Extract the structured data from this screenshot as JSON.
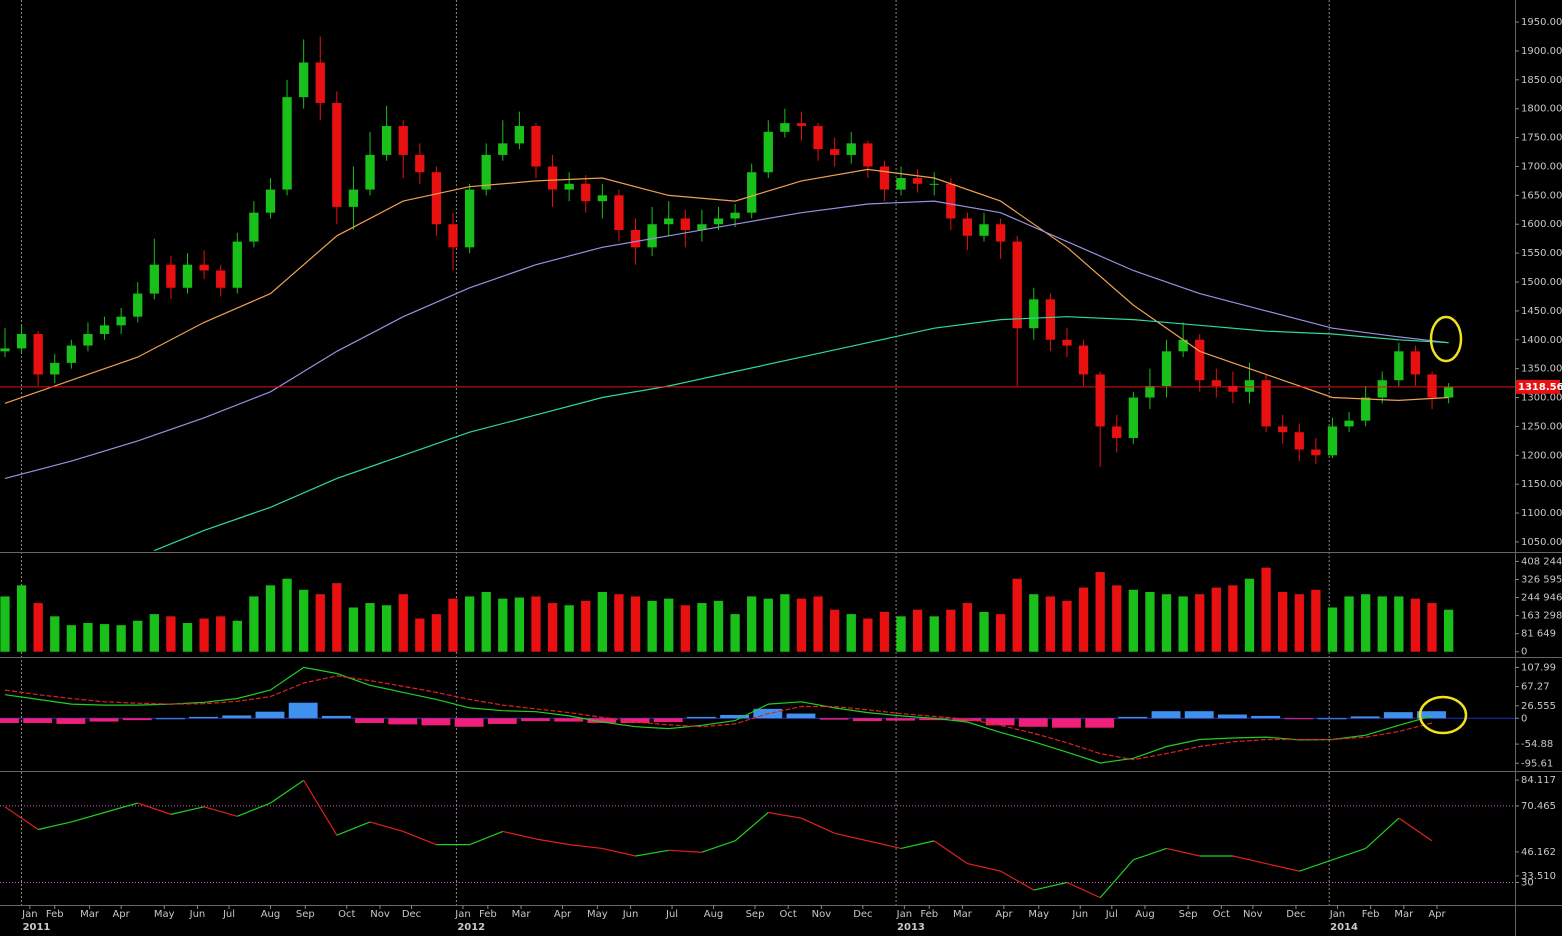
{
  "chart_data": [
    {
      "type": "candlestick",
      "xlim": [
        -0.3,
        91.0
      ],
      "ylim": [
        1032.6,
        1988.2
      ],
      "yticks": [
        {
          "value": 1050,
          "label": "1050.00"
        },
        {
          "value": 1100,
          "label": "1100.00"
        },
        {
          "value": 1150,
          "label": "1150.00"
        },
        {
          "value": 1200,
          "label": "1200.00"
        },
        {
          "value": 1250,
          "label": "1250.00"
        },
        {
          "value": 1300,
          "label": "1300.00"
        },
        {
          "value": 1350,
          "label": "1350.00"
        },
        {
          "value": 1400,
          "label": "1400.00"
        },
        {
          "value": 1450,
          "label": "1450.00"
        },
        {
          "value": 1500,
          "label": "1500.00"
        },
        {
          "value": 1550,
          "label": "1550.00"
        },
        {
          "value": 1600,
          "label": "1600.00"
        },
        {
          "value": 1650,
          "label": "1650.00"
        },
        {
          "value": 1700,
          "label": "1700.00"
        },
        {
          "value": 1750,
          "label": "1750.00"
        },
        {
          "value": 1800,
          "label": "1800.00"
        },
        {
          "value": 1850,
          "label": "1850.00"
        },
        {
          "value": 1900,
          "label": "1900.00"
        },
        {
          "value": 1950,
          "label": "1950.00"
        }
      ],
      "up_color": "#19c019",
      "down_color": "#e81010",
      "open": [
        1380,
        1385,
        1410,
        1340,
        1360,
        1390,
        1410,
        1425,
        1440,
        1480,
        1530,
        1490,
        1530,
        1520,
        1490,
        1570,
        1620,
        1660,
        1820,
        1880,
        1810,
        1630,
        1660,
        1720,
        1770,
        1720,
        1690,
        1600,
        1560,
        1660,
        1720,
        1740,
        1770,
        1700,
        1660,
        1670,
        1640,
        1650,
        1590,
        1560,
        1600,
        1610,
        1590,
        1600,
        1610,
        1620,
        1690,
        1760,
        1775,
        1770,
        1730,
        1720,
        1740,
        1700,
        1660,
        1680,
        1670,
        1670,
        1610,
        1580,
        1600,
        1570,
        1420,
        1470,
        1400,
        1390,
        1340,
        1250,
        1230,
        1300,
        1320,
        1380,
        1400,
        1330,
        1320,
        1310,
        1330,
        1250,
        1240,
        1210,
        1200,
        1250,
        1260,
        1300,
        1330,
        1380,
        1340,
        1300
      ],
      "high": [
        1420,
        1425,
        1415,
        1375,
        1400,
        1430,
        1440,
        1455,
        1500,
        1575,
        1545,
        1550,
        1555,
        1530,
        1585,
        1640,
        1680,
        1850,
        1920,
        1925,
        1830,
        1700,
        1760,
        1805,
        1780,
        1740,
        1700,
        1620,
        1670,
        1740,
        1780,
        1795,
        1775,
        1720,
        1690,
        1685,
        1670,
        1660,
        1610,
        1630,
        1640,
        1625,
        1625,
        1630,
        1635,
        1705,
        1780,
        1800,
        1795,
        1775,
        1750,
        1760,
        1745,
        1710,
        1700,
        1695,
        1690,
        1680,
        1620,
        1620,
        1610,
        1580,
        1490,
        1480,
        1420,
        1400,
        1345,
        1270,
        1310,
        1350,
        1400,
        1430,
        1410,
        1350,
        1345,
        1360,
        1340,
        1270,
        1255,
        1230,
        1265,
        1275,
        1320,
        1345,
        1395,
        1390,
        1345,
        1325
      ],
      "low": [
        1370,
        1375,
        1320,
        1325,
        1350,
        1380,
        1400,
        1410,
        1430,
        1470,
        1470,
        1480,
        1505,
        1475,
        1480,
        1560,
        1610,
        1650,
        1800,
        1780,
        1600,
        1590,
        1650,
        1710,
        1680,
        1670,
        1580,
        1520,
        1550,
        1650,
        1710,
        1730,
        1680,
        1630,
        1640,
        1620,
        1610,
        1570,
        1530,
        1545,
        1580,
        1560,
        1570,
        1590,
        1595,
        1610,
        1680,
        1750,
        1745,
        1710,
        1700,
        1705,
        1680,
        1640,
        1650,
        1655,
        1650,
        1590,
        1555,
        1570,
        1540,
        1320,
        1400,
        1380,
        1370,
        1320,
        1180,
        1205,
        1220,
        1280,
        1300,
        1370,
        1310,
        1300,
        1290,
        1290,
        1240,
        1220,
        1190,
        1185,
        1195,
        1240,
        1250,
        1290,
        1320,
        1320,
        1280,
        1290
      ],
      "close": [
        1385,
        1410,
        1340,
        1360,
        1390,
        1410,
        1425,
        1440,
        1480,
        1530,
        1490,
        1530,
        1520,
        1490,
        1570,
        1620,
        1660,
        1820,
        1880,
        1810,
        1630,
        1660,
        1720,
        1770,
        1720,
        1690,
        1600,
        1560,
        1660,
        1720,
        1740,
        1770,
        1700,
        1660,
        1670,
        1640,
        1650,
        1590,
        1560,
        1600,
        1610,
        1590,
        1600,
        1610,
        1620,
        1690,
        1760,
        1775,
        1770,
        1730,
        1720,
        1740,
        1700,
        1660,
        1680,
        1670,
        1670,
        1610,
        1580,
        1600,
        1570,
        1420,
        1470,
        1400,
        1390,
        1340,
        1250,
        1230,
        1300,
        1320,
        1380,
        1400,
        1330,
        1320,
        1310,
        1330,
        1250,
        1240,
        1210,
        1200,
        1250,
        1260,
        1300,
        1330,
        1380,
        1340,
        1300,
        1318.56
      ],
      "moving_averages": [
        {
          "color": "#f0a050",
          "x": [
            0,
            4,
            8,
            12,
            16,
            20,
            24,
            28,
            32,
            36,
            40,
            44,
            48,
            52,
            56,
            60,
            64,
            68,
            72,
            76,
            80,
            84,
            87
          ],
          "values": [
            1290,
            1330,
            1370,
            1430,
            1480,
            1580,
            1640,
            1665,
            1675,
            1680,
            1650,
            1640,
            1675,
            1695,
            1680,
            1640,
            1560,
            1460,
            1380,
            1340,
            1300,
            1295,
            1300
          ]
        },
        {
          "color": "#9a90e0",
          "x": [
            0,
            4,
            8,
            12,
            16,
            20,
            24,
            28,
            32,
            36,
            40,
            44,
            48,
            52,
            56,
            60,
            64,
            68,
            72,
            76,
            80,
            84,
            87
          ],
          "values": [
            1160,
            1190,
            1225,
            1265,
            1310,
            1380,
            1440,
            1490,
            1530,
            1560,
            1580,
            1600,
            1620,
            1635,
            1640,
            1620,
            1570,
            1520,
            1480,
            1450,
            1420,
            1405,
            1395
          ]
        },
        {
          "color": "#30d8a0",
          "x": [
            9,
            12,
            16,
            20,
            24,
            28,
            32,
            36,
            40,
            44,
            48,
            52,
            56,
            60,
            64,
            68,
            72,
            76,
            80,
            84,
            87
          ],
          "values": [
            1035,
            1070,
            1110,
            1160,
            1200,
            1240,
            1270,
            1300,
            1320,
            1345,
            1370,
            1395,
            1420,
            1435,
            1440,
            1435,
            1425,
            1415,
            1410,
            1400,
            1395
          ]
        }
      ],
      "last_price": 1318.56,
      "last_price_color": "#e81010"
    },
    {
      "type": "bar",
      "ylim": [
        -23735,
        446220
      ],
      "yticks": [
        {
          "value": 408244,
          "label": "408 244"
        },
        {
          "value": 326595,
          "label": "326 595"
        },
        {
          "value": 244946,
          "label": "244 946"
        },
        {
          "value": 163298,
          "label": "163 298"
        },
        {
          "value": 81649,
          "label": "81 649"
        },
        0
      ],
      "values": [
        250000,
        300000,
        220000,
        160000,
        120000,
        130000,
        125000,
        120000,
        140000,
        170000,
        160000,
        130000,
        150000,
        160000,
        140000,
        250000,
        300000,
        330000,
        280000,
        260000,
        310000,
        200000,
        220000,
        210000,
        260000,
        150000,
        170000,
        240000,
        250000,
        270000,
        240000,
        245000,
        250000,
        220000,
        210000,
        230000,
        270000,
        260000,
        250000,
        230000,
        240000,
        210000,
        220000,
        230000,
        170000,
        250000,
        240000,
        260000,
        240000,
        250000,
        190000,
        170000,
        150000,
        180000,
        160000,
        190000,
        160000,
        190000,
        220000,
        180000,
        170000,
        330000,
        260000,
        250000,
        230000,
        290000,
        360000,
        300000,
        280000,
        270000,
        260000,
        250000,
        260000,
        290000,
        300000,
        330000,
        380000,
        270000,
        260000,
        280000,
        200000,
        250000,
        260000,
        250000,
        250000,
        240000,
        220000,
        190000
      ]
    },
    {
      "type": "macd",
      "ylim": [
        -112,
        128
      ],
      "yticks": [
        107.99,
        67.27,
        26.555,
        0,
        -54.88,
        -95.61
      ],
      "x": [
        0,
        2,
        4,
        6,
        8,
        10,
        12,
        14,
        16,
        18,
        20,
        22,
        24,
        26,
        28,
        30,
        32,
        34,
        36,
        38,
        40,
        42,
        44,
        46,
        48,
        50,
        52,
        54,
        56,
        58,
        60,
        62,
        64,
        66,
        68,
        70,
        72,
        74,
        76,
        78,
        80,
        82,
        84,
        86
      ],
      "macd": {
        "color": "#20d020",
        "values": [
          50,
          40,
          30,
          28,
          28,
          30,
          34,
          42,
          60,
          108,
          95,
          70,
          55,
          40,
          22,
          16,
          14,
          5,
          -8,
          -18,
          -22,
          -15,
          -5,
          30,
          35,
          22,
          12,
          5,
          0,
          -8,
          -30,
          -50,
          -72,
          -95,
          -85,
          -60,
          -45,
          -42,
          -40,
          -46,
          -45,
          -36,
          -15,
          5
        ]
      },
      "signal": {
        "color": "#e02020",
        "values": [
          60,
          50,
          42,
          35,
          32,
          30,
          31,
          36,
          46,
          75,
          90,
          80,
          68,
          55,
          40,
          28,
          20,
          12,
          2,
          -8,
          -14,
          -18,
          -12,
          10,
          25,
          25,
          18,
          10,
          4,
          -2,
          -15,
          -32,
          -52,
          -75,
          -88,
          -75,
          -60,
          -50,
          -45,
          -45,
          -45,
          -40,
          -28,
          -10
        ]
      },
      "histogram": {
        "pos_color": "#4090f0",
        "neg_color": "#f0207a",
        "values": [
          -10,
          -10,
          -12,
          -7,
          -4,
          0,
          3,
          6,
          14,
          33,
          5,
          -10,
          -13,
          -15,
          -18,
          -12,
          -6,
          -7,
          -10,
          -10,
          -8,
          3,
          7,
          20,
          10,
          -3,
          -6,
          -5,
          -4,
          -6,
          -15,
          -18,
          -20,
          -20,
          3,
          15,
          15,
          8,
          5,
          -1,
          0,
          4,
          13,
          15
        ]
      }
    },
    {
      "type": "line",
      "ylim": [
        18.1,
        88.4
      ],
      "yticks": [
        84.117,
        70.465,
        46.162,
        {
          "value": 33.51,
          "label": "33.510"
        },
        30
      ],
      "levels": [
        70.465,
        30
      ],
      "level_color": "#d060d0",
      "up_color": "#20d020",
      "down_color": "#e02020",
      "x": [
        0,
        2,
        4,
        6,
        8,
        10,
        12,
        14,
        16,
        18,
        20,
        22,
        24,
        26,
        28,
        30,
        32,
        34,
        36,
        38,
        40,
        42,
        44,
        46,
        48,
        50,
        52,
        54,
        56,
        58,
        60,
        62,
        64,
        66,
        68,
        70,
        72,
        74,
        76,
        78,
        80,
        82,
        84,
        86
      ],
      "values": [
        70,
        58,
        62,
        67,
        72,
        66,
        70,
        65,
        72,
        84,
        55,
        62,
        57,
        50,
        50,
        57,
        53,
        50,
        48,
        44,
        47,
        46,
        52,
        67,
        64,
        56,
        52,
        48,
        52,
        40,
        36,
        26,
        30,
        22,
        42,
        48,
        44,
        44,
        40,
        36,
        42,
        48,
        64,
        52
      ],
      "xticks": [
        {
          "value": 1.5,
          "label": "Jan"
        },
        {
          "value": 3.0,
          "label": "Feb"
        },
        {
          "value": 5.1,
          "label": "Mar"
        },
        {
          "value": 7.0,
          "label": "Apr"
        },
        {
          "value": 9.6,
          "label": "May"
        },
        {
          "value": 11.6,
          "label": "Jun"
        },
        {
          "value": 13.5,
          "label": "Jul"
        },
        {
          "value": 16.0,
          "label": "Aug"
        },
        {
          "value": 18.1,
          "label": "Sep"
        },
        {
          "value": 20.6,
          "label": "Oct"
        },
        {
          "value": 22.6,
          "label": "Nov"
        },
        {
          "value": 24.5,
          "label": "Dec"
        },
        {
          "value": 27.6,
          "label": "Jan"
        },
        {
          "value": 29.1,
          "label": "Feb"
        },
        {
          "value": 31.1,
          "label": "Mar"
        },
        {
          "value": 33.6,
          "label": "Apr"
        },
        {
          "value": 35.7,
          "label": "May"
        },
        {
          "value": 37.7,
          "label": "Jun"
        },
        {
          "value": 40.2,
          "label": "Jul"
        },
        {
          "value": 42.7,
          "label": "Aug"
        },
        {
          "value": 45.2,
          "label": "Sep"
        },
        {
          "value": 47.2,
          "label": "Oct"
        },
        {
          "value": 49.2,
          "label": "Nov"
        },
        {
          "value": 51.7,
          "label": "Dec"
        },
        {
          "value": 54.2,
          "label": "Jan"
        },
        {
          "value": 55.7,
          "label": "Feb"
        },
        {
          "value": 57.7,
          "label": "Mar"
        },
        {
          "value": 60.2,
          "label": "Apr"
        },
        {
          "value": 62.3,
          "label": "May"
        },
        {
          "value": 64.8,
          "label": "Jun"
        },
        {
          "value": 66.7,
          "label": "Jul"
        },
        {
          "value": 68.7,
          "label": "Aug"
        },
        {
          "value": 71.3,
          "label": "Sep"
        },
        {
          "value": 73.3,
          "label": "Oct"
        },
        {
          "value": 75.2,
          "label": "Nov"
        },
        {
          "value": 77.8,
          "label": "Dec"
        },
        {
          "value": 80.3,
          "label": "Jan"
        },
        {
          "value": 82.3,
          "label": "Feb"
        },
        {
          "value": 84.3,
          "label": "Mar"
        },
        {
          "value": 86.3,
          "label": "Apr"
        }
      ],
      "year_ticks": [
        {
          "value": 1.0,
          "label": "2011"
        },
        {
          "value": 27.2,
          "label": "2012"
        },
        {
          "value": 53.7,
          "label": "2013"
        },
        {
          "value": 79.8,
          "label": "2014"
        }
      ]
    }
  ]
}
